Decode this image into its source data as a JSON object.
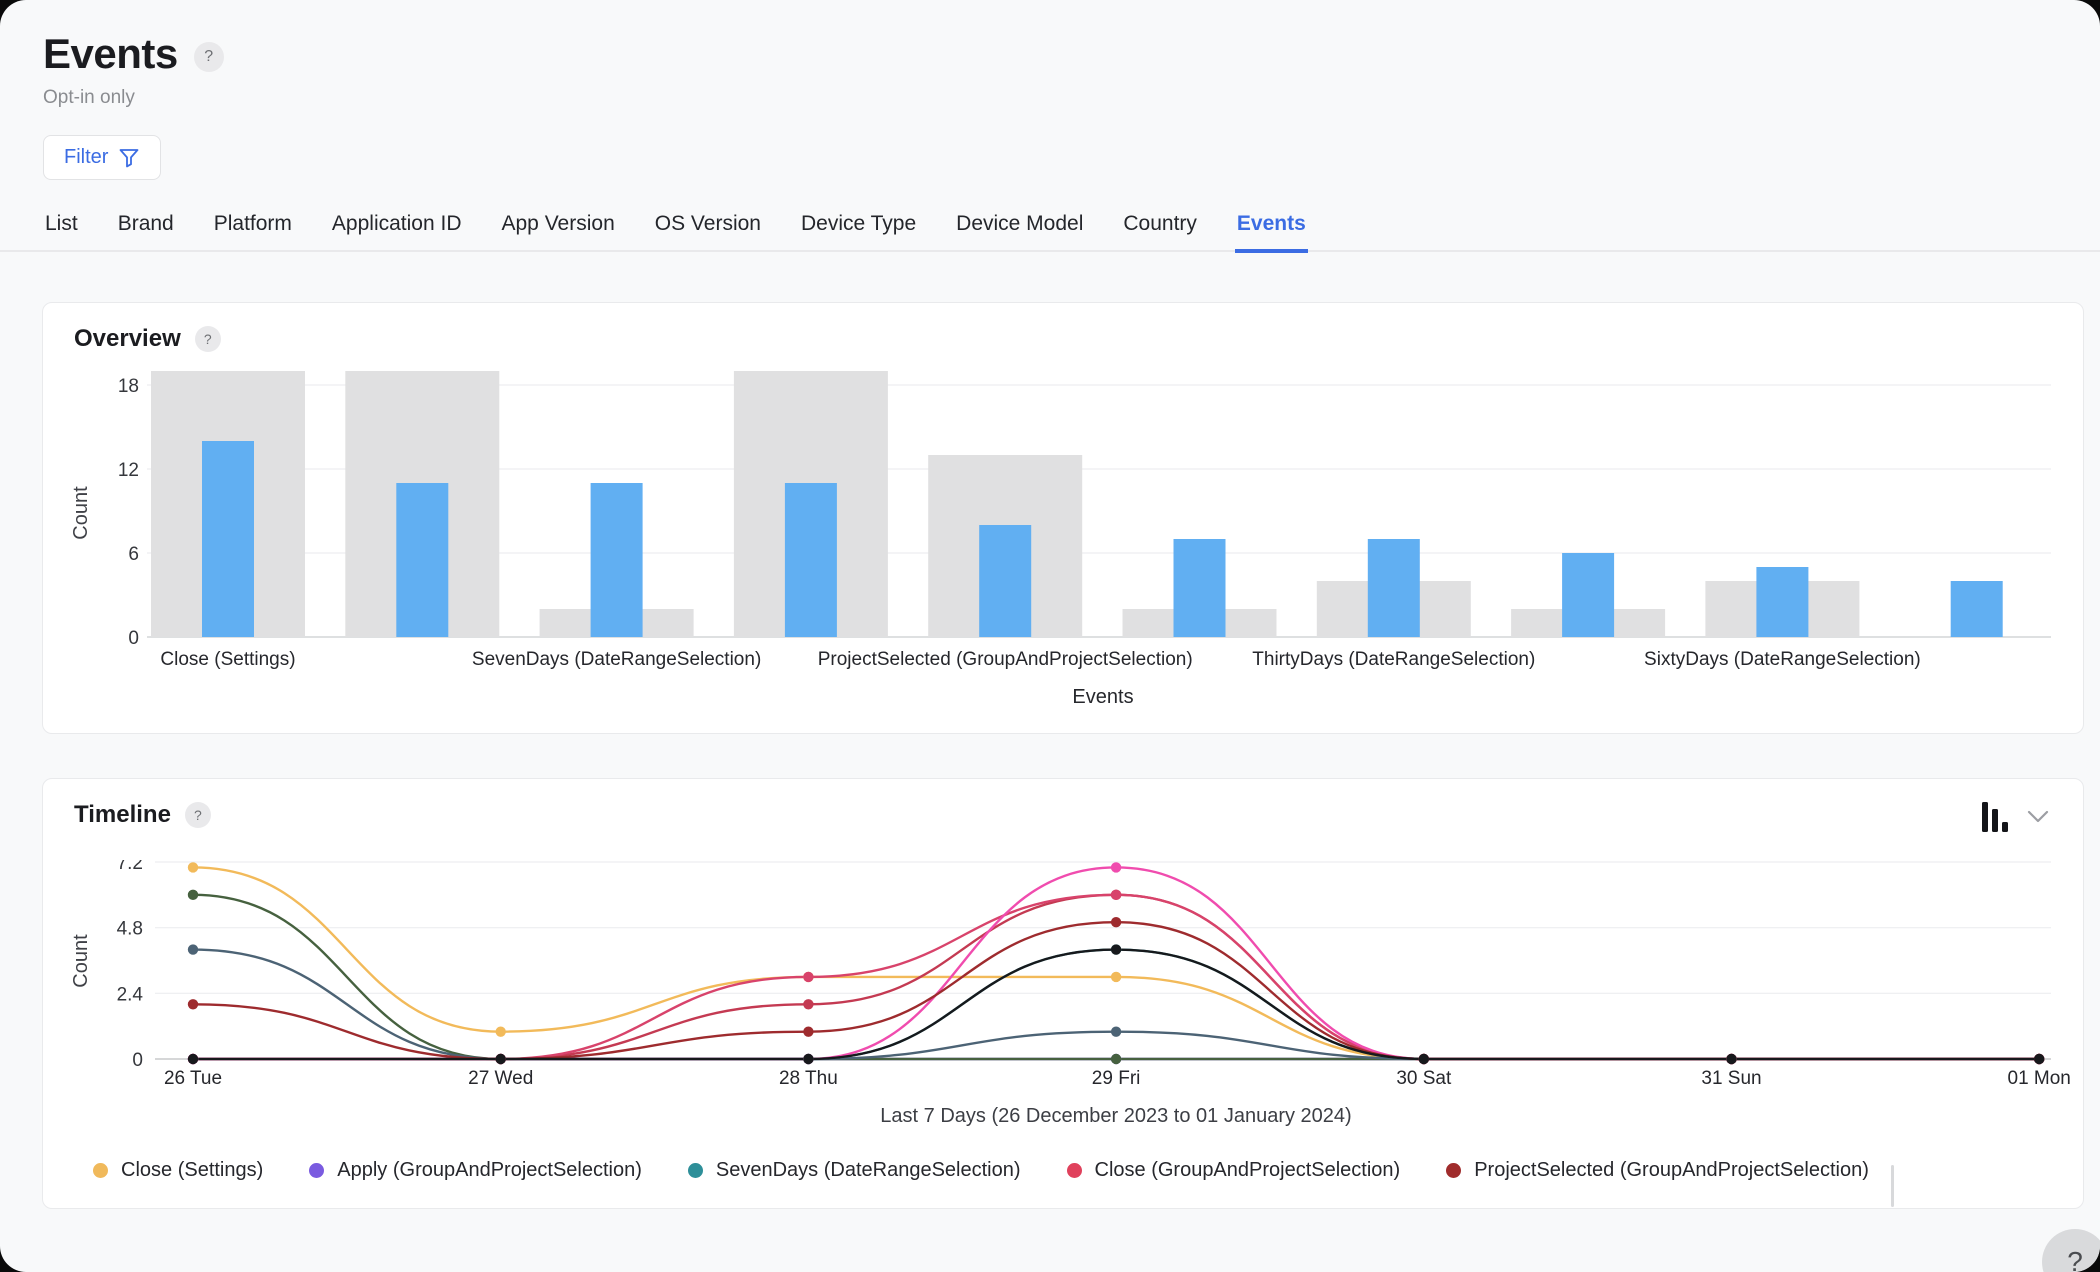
{
  "header": {
    "title": "Events",
    "subtitle": "Opt-in only",
    "filter_label": "Filter",
    "help_glyph": "?"
  },
  "tabs": {
    "items": [
      "List",
      "Brand",
      "Platform",
      "Application ID",
      "App Version",
      "OS Version",
      "Device Type",
      "Device Model",
      "Country",
      "Events"
    ],
    "active": "Events",
    "accent_color": "#3B6CE3"
  },
  "overview_card": {
    "title": "Overview",
    "help_glyph": "?"
  },
  "timeline_card": {
    "title": "Timeline",
    "help_glyph": "?",
    "chart_type_icon": "bar-chart-icon",
    "dropdown_icon": "chevron-down-icon"
  },
  "floating_help_glyph": "?",
  "colors": {
    "accent_blue": "#3B6CE3",
    "bar_blue": "#61AFF2",
    "bar_gray": "#E0E0E1",
    "gridline": "#EDEEF0",
    "axis_line": "#D4D5D7",
    "tick_text": "#35373C"
  },
  "chart_data": [
    {
      "id": "overview",
      "type": "bar",
      "title": "Overview",
      "xlabel": "Events",
      "ylabel": "Count",
      "yticks": [
        0,
        6,
        12,
        18
      ],
      "ylim": [
        0,
        19.5
      ],
      "grid": true,
      "categories": [
        "Close (Settings)",
        "",
        "SevenDays (DateRangeSelection)",
        "",
        "ProjectSelected (GroupAndProjectSelection)",
        "",
        "ThirtyDays (DateRangeSelection)",
        "",
        "SixtyDays (DateRangeSelection)",
        ""
      ],
      "series": [
        {
          "name": "background-range",
          "color": "#E0E0E1",
          "values": [
            19,
            19,
            2,
            19,
            13,
            2,
            4,
            2,
            4,
            0
          ]
        },
        {
          "name": "event-count",
          "color": "#61AFF2",
          "values": [
            14,
            11,
            11,
            11,
            8,
            7,
            7,
            6,
            5,
            4
          ]
        }
      ]
    },
    {
      "id": "timeline",
      "type": "line",
      "title": "Timeline",
      "ylabel": "Count",
      "yticks": [
        0,
        2.4,
        4.8,
        7.2
      ],
      "ylim": [
        0,
        7.6
      ],
      "x": [
        "26 Tue",
        "27 Wed",
        "28 Thu",
        "29 Fri",
        "30 Sat",
        "31 Sun",
        "01 Mon"
      ],
      "xlabel": "Last 7 Days (26 December 2023 to 01 January 2024)",
      "legend_position": "bottom",
      "series": [
        {
          "name": "Apply (GroupAndProjectSelection)",
          "color": "#7A5BE0",
          "values": [
            0,
            0,
            0,
            0,
            0,
            0,
            0
          ]
        },
        {
          "name": "series-green",
          "color": "#46613F",
          "values": [
            6,
            0,
            0,
            0,
            0,
            0,
            0
          ]
        },
        {
          "name": "Close (Settings)",
          "color": "#F2BA5A",
          "values": [
            7,
            1,
            3,
            3,
            0,
            0,
            0
          ]
        },
        {
          "name": "series-slate",
          "color": "#4C6375",
          "values": [
            4,
            0,
            0,
            1,
            0,
            0,
            0
          ]
        },
        {
          "name": "SevenDays (DateRangeSelection)",
          "color": "#3AA5B0",
          "values": [
            0,
            0,
            0,
            4,
            0,
            0,
            0
          ]
        },
        {
          "name": "series-crimson",
          "color": "#C43A52",
          "values": [
            0,
            0,
            2,
            6,
            0,
            0,
            0
          ]
        },
        {
          "name": "Close (GroupAndProjectSelection)",
          "color": "#D8436B",
          "values": [
            0,
            0,
            3,
            6,
            0,
            0,
            0
          ]
        },
        {
          "name": "series-magenta",
          "color": "#F04CAE",
          "values": [
            0,
            0,
            0,
            7,
            0,
            0,
            0
          ]
        },
        {
          "name": "ProjectSelected (GroupAndProjectSelection)",
          "color": "#9E2B2E",
          "values": [
            2,
            0,
            1,
            5,
            0,
            0,
            0
          ]
        },
        {
          "name": "series-black",
          "color": "#17191C",
          "values": [
            0,
            0,
            0,
            4,
            0,
            0,
            0
          ]
        }
      ],
      "legend": [
        {
          "label": "Close (Settings)",
          "color": "#F0B95B"
        },
        {
          "label": "Apply (GroupAndProjectSelection)",
          "color": "#7A5BE0"
        },
        {
          "label": "SevenDays (DateRangeSelection)",
          "color": "#2E8F99"
        },
        {
          "label": "Close (GroupAndProjectSelection)",
          "color": "#E0415C"
        },
        {
          "label": "ProjectSelected (GroupAndProjectSelection)",
          "color": "#A02C2C"
        }
      ]
    }
  ]
}
